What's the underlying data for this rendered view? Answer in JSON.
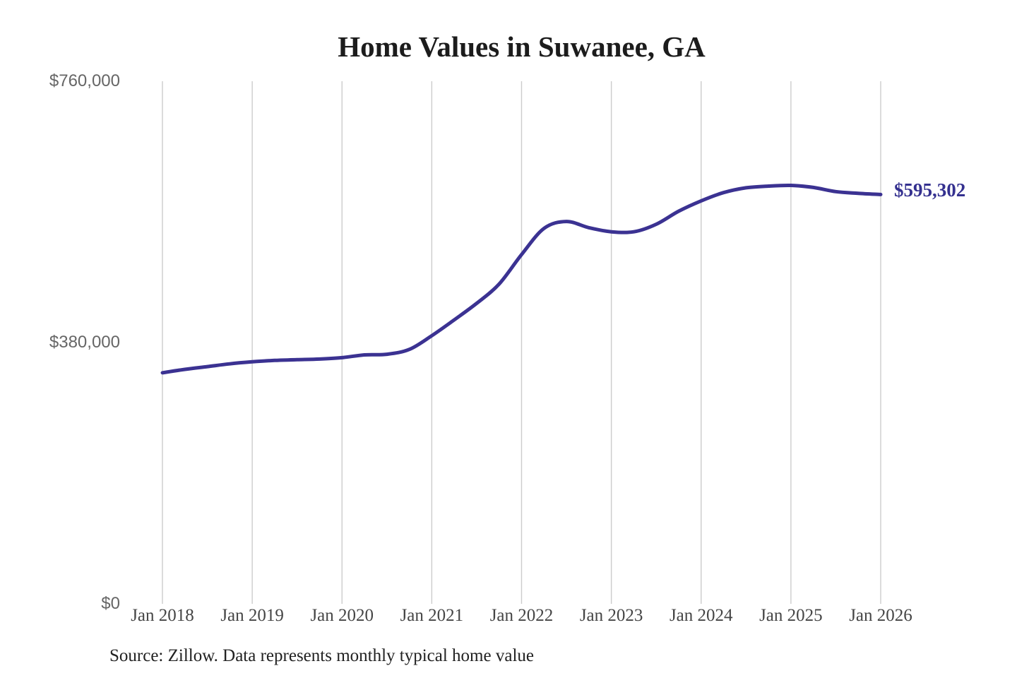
{
  "title": "Home Values in Suwanee, GA",
  "source_note": "Source: Zillow. Data represents monthly typical home value",
  "latest_value_label": "$595,302",
  "colors": {
    "line": "#3b3292",
    "grid": "#cccccc",
    "title_text": "#1c1c1c",
    "x_tick_text": "#454545",
    "y_tick_text": "#666666",
    "latest_label_text": "#34308f",
    "source_text": "#222222",
    "background": "#ffffff"
  },
  "chart_data": {
    "type": "line",
    "title": "Home Values in Suwanee, GA",
    "grid": "vertical-only",
    "legend": "none",
    "ylim": [
      0,
      760000
    ],
    "y_ticks": [
      {
        "label": "$0",
        "value": 0
      },
      {
        "label": "$380,000",
        "value": 380000
      },
      {
        "label": "$760,000",
        "value": 760000
      }
    ],
    "x_tick_labels": [
      "Jan 2018",
      "Jan 2019",
      "Jan 2020",
      "Jan 2021",
      "Jan 2022",
      "Jan 2023",
      "Jan 2024",
      "Jan 2025",
      "Jan 2026"
    ],
    "x_span_months": 96,
    "x_months_from_jan2018": [
      0,
      3,
      6,
      9,
      12,
      15,
      18,
      21,
      24,
      27,
      30,
      33,
      36,
      39,
      42,
      45,
      48,
      51,
      54,
      57,
      60,
      63,
      66,
      69,
      72,
      75,
      78,
      81,
      84,
      87,
      90,
      93,
      96
    ],
    "values": [
      336000,
      341000,
      345000,
      349000,
      352000,
      354000,
      355000,
      356000,
      358000,
      362000,
      363000,
      370000,
      390000,
      413000,
      437000,
      465000,
      508000,
      546000,
      556000,
      547000,
      541000,
      541000,
      552000,
      571000,
      586000,
      598000,
      605000,
      607500,
      608500,
      605500,
      599500,
      597000,
      595302
    ],
    "latest_value": 595302,
    "latest_value_label": "$595,302"
  }
}
